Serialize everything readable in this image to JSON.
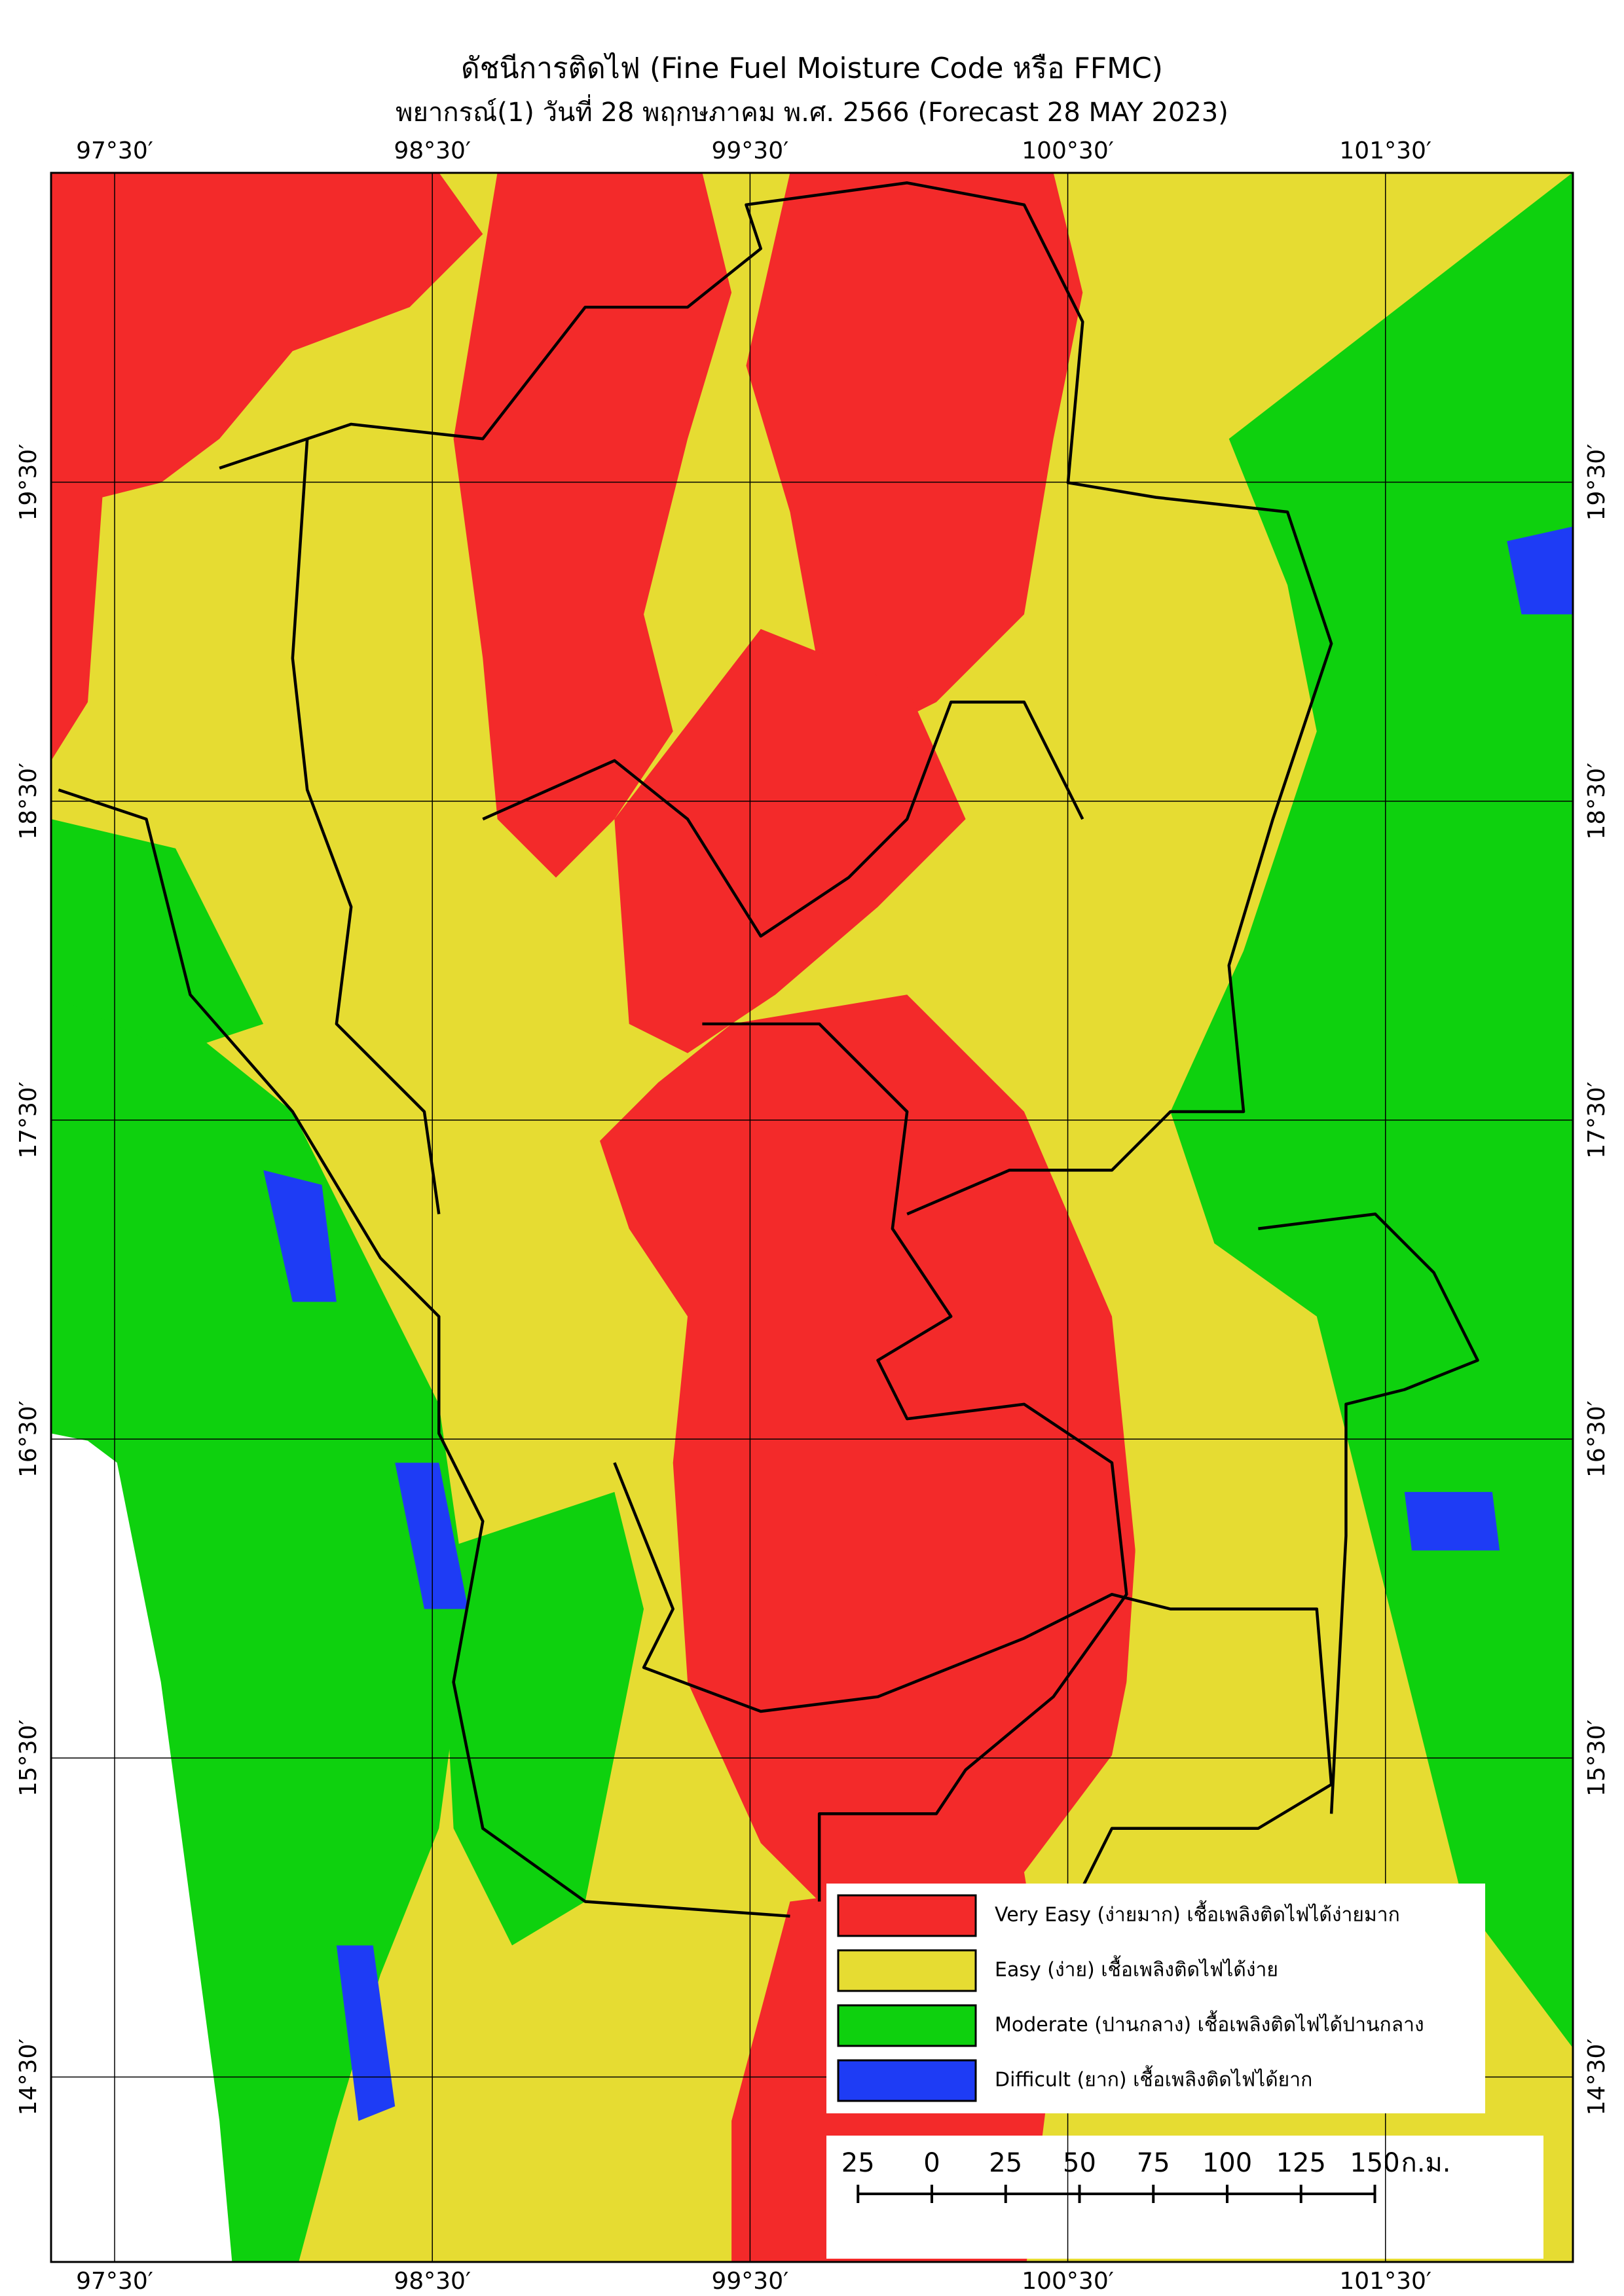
{
  "title": "ดัชนีการติดไฟ (Fine Fuel Moisture Code หรือ FFMC)",
  "subtitle": "พยากรณ์(1) วันที่ 28 พฤกษภาคม พ.ศ. 2566 (Forecast 28 MAY 2023)",
  "map": {
    "lon_range": [
      97.3,
      102.09
    ],
    "lat_range": [
      13.92,
      20.47
    ],
    "lon_ticks": [
      {
        "value": 97.5,
        "label": "97°30′"
      },
      {
        "value": 98.5,
        "label": "98°30′"
      },
      {
        "value": 99.5,
        "label": "99°30′"
      },
      {
        "value": 100.5,
        "label": "100°30′"
      },
      {
        "value": 101.5,
        "label": "101°30′"
      }
    ],
    "lat_ticks": [
      {
        "value": 19.5,
        "label": "19°30′"
      },
      {
        "value": 18.5,
        "label": "18°30′"
      },
      {
        "value": 17.5,
        "label": "17°30′"
      },
      {
        "value": 16.5,
        "label": "16°30′"
      },
      {
        "value": 15.5,
        "label": "15°30′"
      },
      {
        "value": 14.5,
        "label": "14°30′"
      }
    ]
  },
  "legend": [
    {
      "color": "#f32a2a",
      "label": "Very Easy (ง่ายมาก) เชื้อเพลิงติดไฟได้ง่ายมาก"
    },
    {
      "color": "#e6dc32",
      "label": "Easy (ง่าย) เชื้อเพลิงติดไฟได้ง่าย"
    },
    {
      "color": "#0ed10e",
      "label": "Moderate (ปานกลาง) เชื้อเพลิงติดไฟได้ปานกลาง"
    },
    {
      "color": "#1e3cf5",
      "label": "Difficult (ยาก) เชื้อเพลิงติดไฟได้ยาก"
    }
  ],
  "scale_bar": {
    "ticks": [
      {
        "value": -25,
        "label": "25"
      },
      0,
      25,
      50,
      75,
      100,
      125,
      150
    ],
    "unit": "ก.ม."
  }
}
